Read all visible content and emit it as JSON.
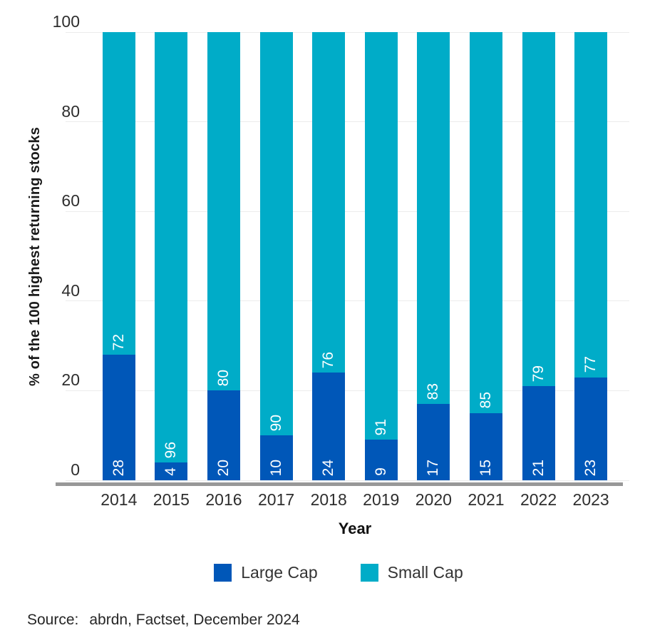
{
  "source": {
    "label": "Source:",
    "text": "abrdn, Factset, December 2024"
  },
  "colors": {
    "large_cap": "#0057b8",
    "small_cap": "#00acc8",
    "gridline": "#ececec",
    "axis_line": "#989898",
    "tick_text": "#2e2e2e",
    "bar_label_text": "#ffffff",
    "legend_text": "#333333",
    "source_text": "#262626"
  },
  "chart_data": {
    "type": "bar",
    "stacked": true,
    "title": "",
    "xlabel": "Year",
    "ylabel": "% of the 100 highest returning stocks",
    "ylim": [
      0,
      100
    ],
    "yticks": [
      0,
      20,
      40,
      60,
      80,
      100
    ],
    "grid": true,
    "legend_position": "bottom",
    "bar_value_labels": "rotated-90-white-inside-bottom-of-segment",
    "categories": [
      "2014",
      "2015",
      "2016",
      "2017",
      "2018",
      "2019",
      "2020",
      "2021",
      "2022",
      "2023"
    ],
    "series": [
      {
        "name": "Large Cap",
        "color": "#0057b8",
        "values": [
          28,
          4,
          20,
          10,
          24,
          9,
          17,
          15,
          21,
          23
        ]
      },
      {
        "name": "Small Cap",
        "color": "#00acc8",
        "values": [
          72,
          96,
          80,
          90,
          76,
          91,
          83,
          85,
          79,
          77
        ]
      }
    ]
  }
}
